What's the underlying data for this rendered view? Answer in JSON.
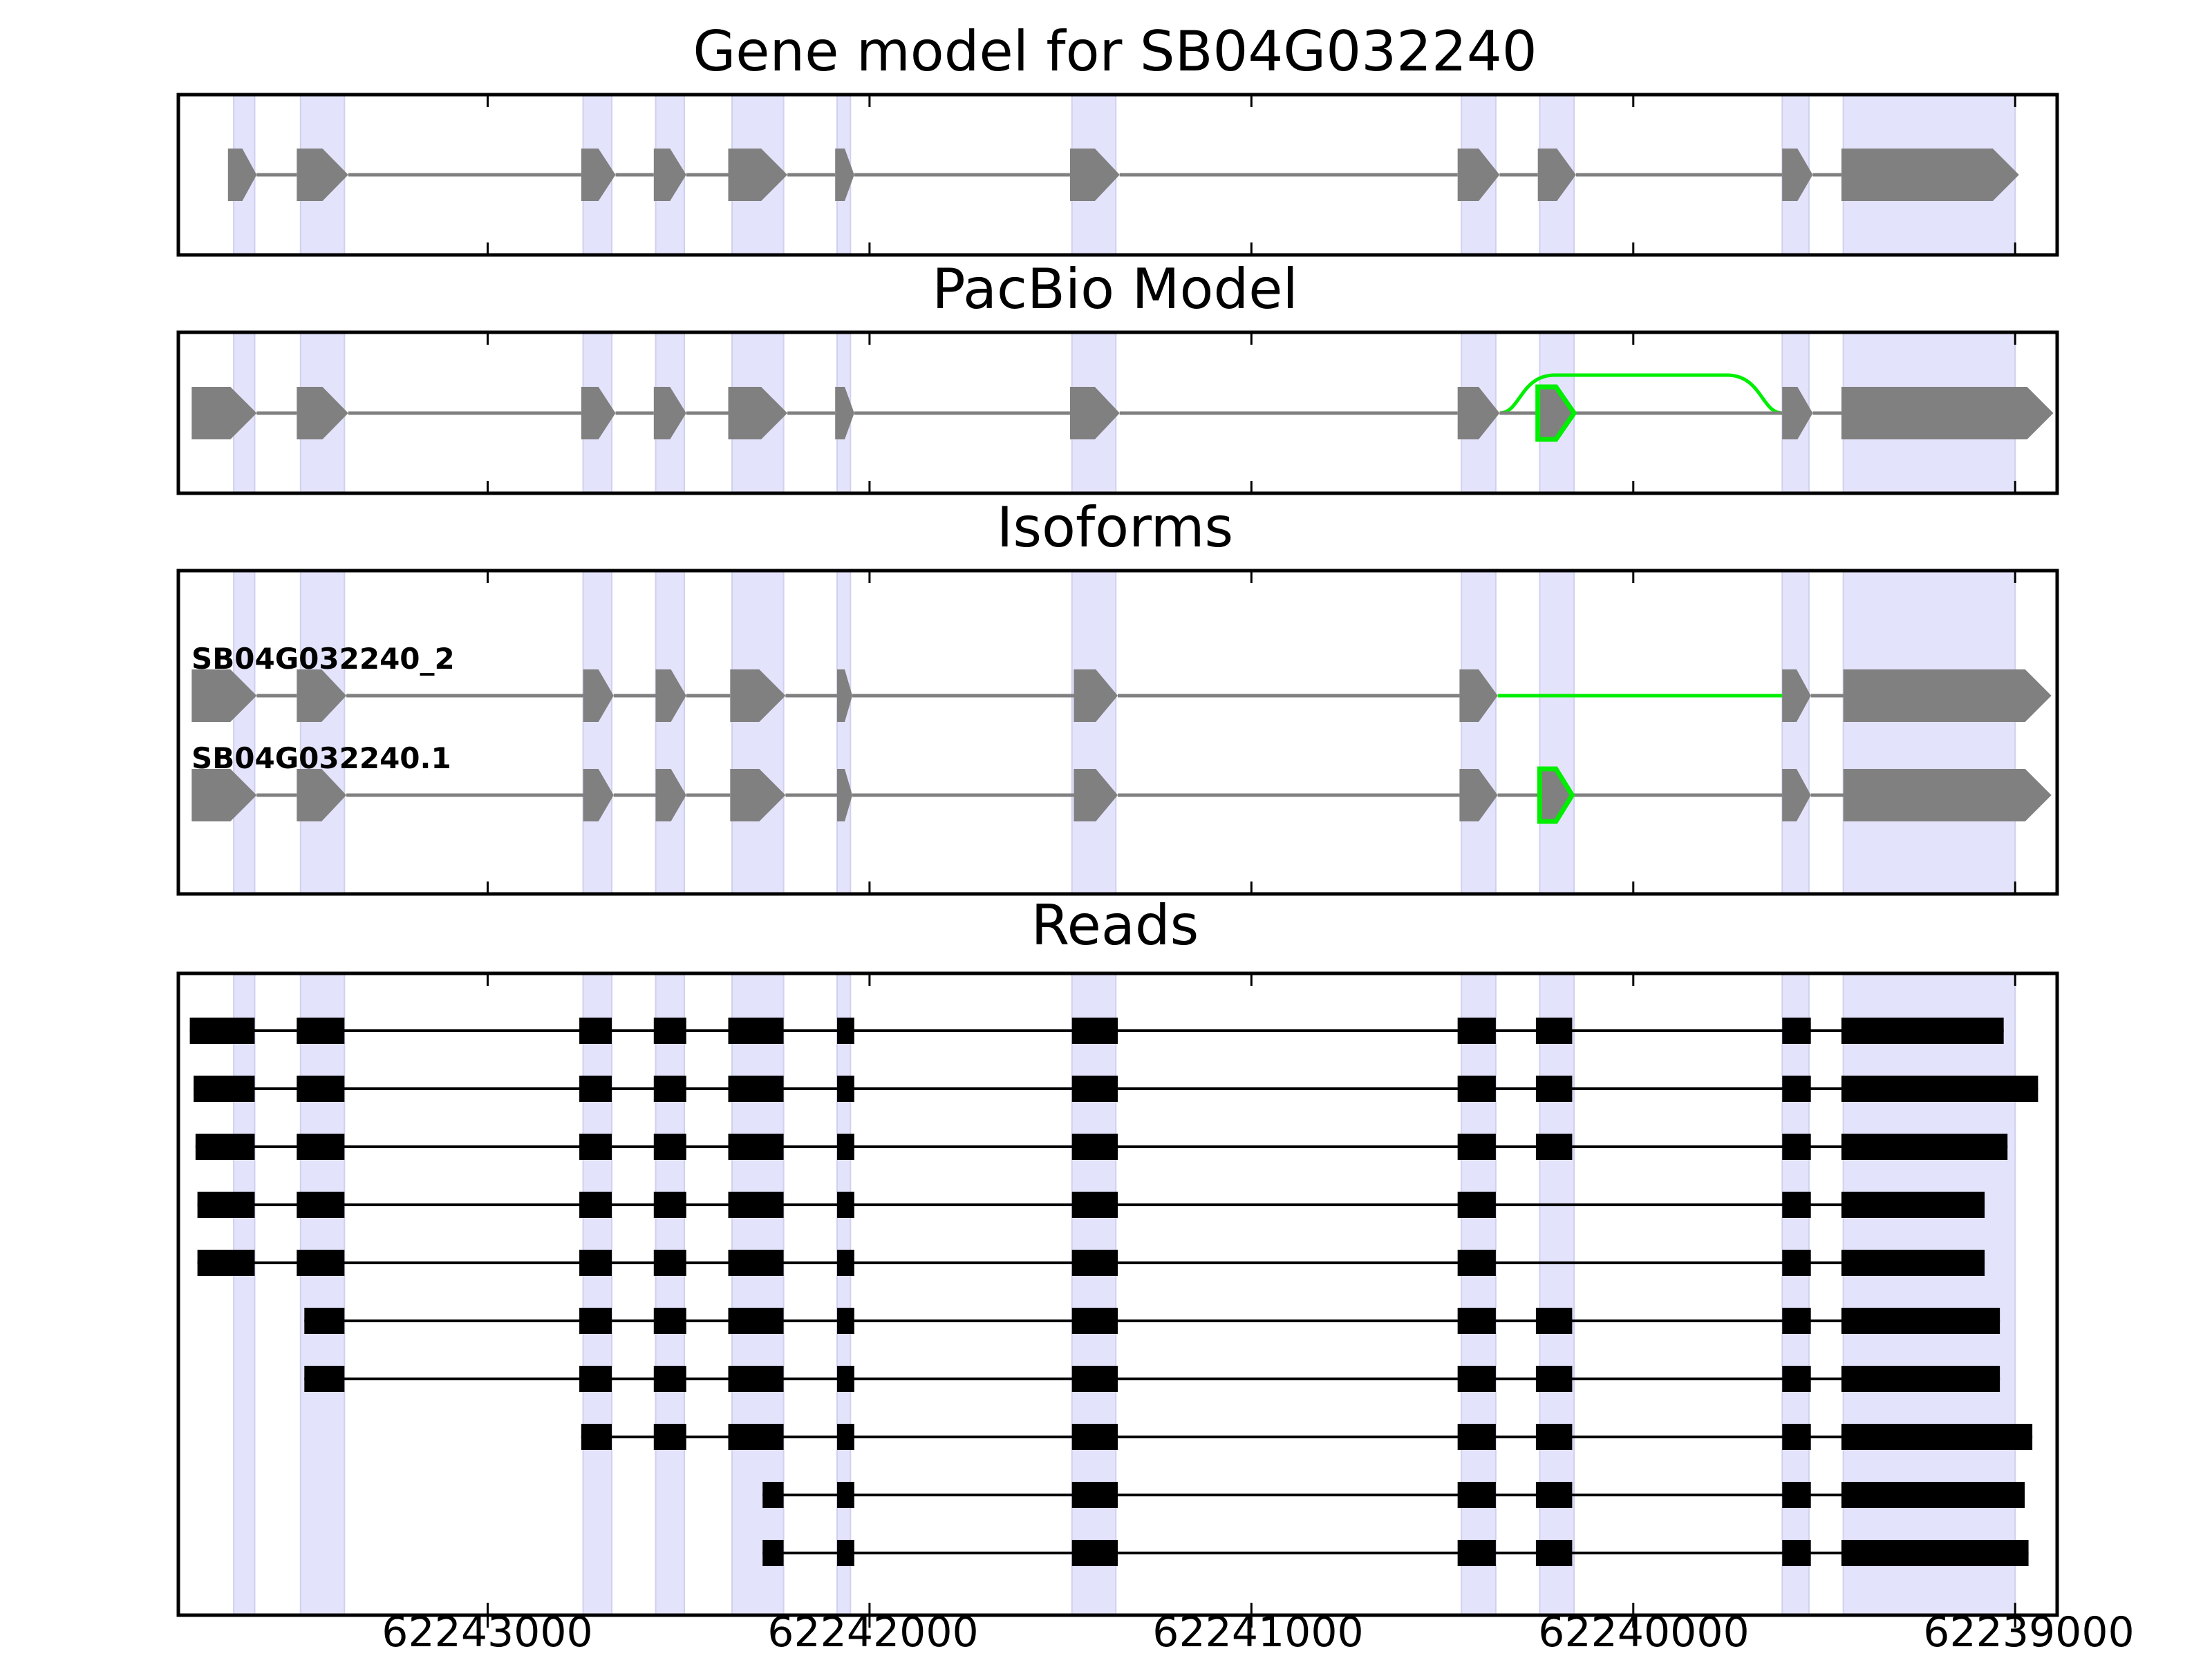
{
  "chart_data": {
    "type": "gene-structure",
    "x_axis": {
      "reversed": true,
      "range": [
        62243810,
        62238890
      ],
      "ticks": [
        62243000,
        62242000,
        62241000,
        62240000,
        62239000
      ],
      "tick_labels": [
        "62243000",
        "62242000",
        "62241000",
        "62240000",
        "62239000"
      ]
    },
    "colors": {
      "shade": "#e3e3fb",
      "feature": "#808080",
      "alt": "#00ee00",
      "read": "#000000"
    },
    "shaded_exons": [
      [
        62243665,
        62243610
      ],
      [
        62243490,
        62243375
      ],
      [
        62242750,
        62242675
      ],
      [
        62242560,
        62242485
      ],
      [
        62242360,
        62242225
      ],
      [
        62242085,
        62242050
      ],
      [
        62241470,
        62241355
      ],
      [
        62240450,
        62240360
      ],
      [
        62240245,
        62240155
      ],
      [
        62239610,
        62239540
      ],
      [
        62239450,
        62239000
      ]
    ],
    "panels": [
      {
        "title": "Gene model for SB04G032240",
        "rows": [
          {
            "label": "",
            "exons": [
              [
                62243680,
                62243605
              ],
              [
                62243500,
                62243365
              ],
              [
                62242755,
                62242665
              ],
              [
                62242565,
                62242480
              ],
              [
                62242370,
                62242215
              ],
              [
                62242090,
                62242040
              ],
              [
                62241475,
                62241345
              ],
              [
                62240460,
                62240350
              ],
              [
                62240250,
                62240150
              ],
              [
                62239610,
                62239530
              ],
              [
                62239455,
                62238990
              ]
            ],
            "alt_exons": [],
            "alt_junction": null
          }
        ]
      },
      {
        "title": "PacBio Model",
        "rows": [
          {
            "label": "",
            "exons": [
              [
                62243775,
                62243605
              ],
              [
                62243500,
                62243365
              ],
              [
                62242755,
                62242665
              ],
              [
                62242565,
                62242480
              ],
              [
                62242370,
                62242215
              ],
              [
                62242090,
                62242040
              ],
              [
                62241475,
                62241345
              ],
              [
                62240460,
                62240350
              ],
              [
                62239610,
                62239530
              ],
              [
                62239455,
                62238900
              ]
            ],
            "alt_exons": [
              [
                62240250,
                62240155
              ]
            ],
            "alt_junction": [
              62240350,
              62239610
            ]
          }
        ]
      },
      {
        "title": "Isoforms",
        "rows": [
          {
            "label": "SB04G032240_2",
            "exons": [
              [
                62243775,
                62243605
              ],
              [
                62243500,
                62243370
              ],
              [
                62242750,
                62242670
              ],
              [
                62242560,
                62242480
              ],
              [
                62242365,
                62242220
              ],
              [
                62242085,
                62242045
              ],
              [
                62241465,
                62241350
              ],
              [
                62240455,
                62240355
              ],
              [
                62239610,
                62239535
              ],
              [
                62239450,
                62238905
              ]
            ],
            "alt_exons": [],
            "alt_junction": [
              62240355,
              62239610
            ]
          },
          {
            "label": "SB04G032240.1",
            "exons": [
              [
                62243775,
                62243605
              ],
              [
                62243500,
                62243370
              ],
              [
                62242750,
                62242670
              ],
              [
                62242560,
                62242480
              ],
              [
                62242365,
                62242220
              ],
              [
                62242085,
                62242045
              ],
              [
                62241465,
                62241350
              ],
              [
                62240455,
                62240355
              ],
              [
                62239610,
                62239535
              ],
              [
                62239450,
                62238905
              ]
            ],
            "alt_exons": [
              [
                62240245,
                62240160
              ]
            ],
            "alt_junction": null
          }
        ]
      }
    ],
    "reads_title": "Reads",
    "reads": [
      [
        [
          62243780,
          62243610
        ],
        [
          62243500,
          62243375
        ],
        [
          62242760,
          62242675
        ],
        [
          62242565,
          62242480
        ],
        [
          62242370,
          62242225
        ],
        [
          62242085,
          62242040
        ],
        [
          62241470,
          62241350
        ],
        [
          62240460,
          62240360
        ],
        [
          62240255,
          62240160
        ],
        [
          62239610,
          62239535
        ],
        [
          62239455,
          62239030
        ]
      ],
      [
        [
          62243770,
          62243610
        ],
        [
          62243500,
          62243375
        ],
        [
          62242760,
          62242675
        ],
        [
          62242565,
          62242480
        ],
        [
          62242370,
          62242225
        ],
        [
          62242085,
          62242040
        ],
        [
          62241470,
          62241350
        ],
        [
          62240460,
          62240360
        ],
        [
          62240255,
          62240160
        ],
        [
          62239610,
          62239535
        ],
        [
          62239455,
          62238940
        ]
      ],
      [
        [
          62243765,
          62243610
        ],
        [
          62243500,
          62243375
        ],
        [
          62242760,
          62242675
        ],
        [
          62242565,
          62242480
        ],
        [
          62242370,
          62242225
        ],
        [
          62242085,
          62242040
        ],
        [
          62241470,
          62241350
        ],
        [
          62240460,
          62240360
        ],
        [
          62240255,
          62240160
        ],
        [
          62239610,
          62239535
        ],
        [
          62239455,
          62239020
        ]
      ],
      [
        [
          62243760,
          62243610
        ],
        [
          62243500,
          62243375
        ],
        [
          62242760,
          62242675
        ],
        [
          62242565,
          62242480
        ],
        [
          62242370,
          62242225
        ],
        [
          62242085,
          62242040
        ],
        [
          62241470,
          62241350
        ],
        [
          62240460,
          62240360
        ],
        [
          62239610,
          62239535
        ],
        [
          62239455,
          62239080
        ]
      ],
      [
        [
          62243760,
          62243610
        ],
        [
          62243500,
          62243375
        ],
        [
          62242760,
          62242675
        ],
        [
          62242565,
          62242480
        ],
        [
          62242370,
          62242225
        ],
        [
          62242085,
          62242040
        ],
        [
          62241470,
          62241350
        ],
        [
          62240460,
          62240360
        ],
        [
          62239610,
          62239535
        ],
        [
          62239455,
          62239080
        ]
      ],
      [
        [
          62243480,
          62243375
        ],
        [
          62242760,
          62242675
        ],
        [
          62242565,
          62242480
        ],
        [
          62242370,
          62242225
        ],
        [
          62242085,
          62242040
        ],
        [
          62241470,
          62241350
        ],
        [
          62240460,
          62240360
        ],
        [
          62240255,
          62240160
        ],
        [
          62239610,
          62239535
        ],
        [
          62239455,
          62239040
        ]
      ],
      [
        [
          62243480,
          62243375
        ],
        [
          62242760,
          62242675
        ],
        [
          62242565,
          62242480
        ],
        [
          62242370,
          62242225
        ],
        [
          62242085,
          62242040
        ],
        [
          62241470,
          62241350
        ],
        [
          62240460,
          62240360
        ],
        [
          62240255,
          62240160
        ],
        [
          62239610,
          62239535
        ],
        [
          62239455,
          62239040
        ]
      ],
      [
        [
          62242755,
          62242675
        ],
        [
          62242565,
          62242480
        ],
        [
          62242370,
          62242225
        ],
        [
          62242085,
          62242040
        ],
        [
          62241470,
          62241350
        ],
        [
          62240460,
          62240360
        ],
        [
          62240255,
          62240160
        ],
        [
          62239610,
          62239535
        ],
        [
          62239455,
          62238955
        ]
      ],
      [
        [
          62242280,
          62242225
        ],
        [
          62242085,
          62242040
        ],
        [
          62241470,
          62241350
        ],
        [
          62240460,
          62240360
        ],
        [
          62240255,
          62240160
        ],
        [
          62239610,
          62239535
        ],
        [
          62239455,
          62238975
        ]
      ],
      [
        [
          62242280,
          62242225
        ],
        [
          62242085,
          62242040
        ],
        [
          62241470,
          62241350
        ],
        [
          62240460,
          62240360
        ],
        [
          62240255,
          62240160
        ],
        [
          62239610,
          62239535
        ],
        [
          62239455,
          62238965
        ]
      ]
    ]
  }
}
